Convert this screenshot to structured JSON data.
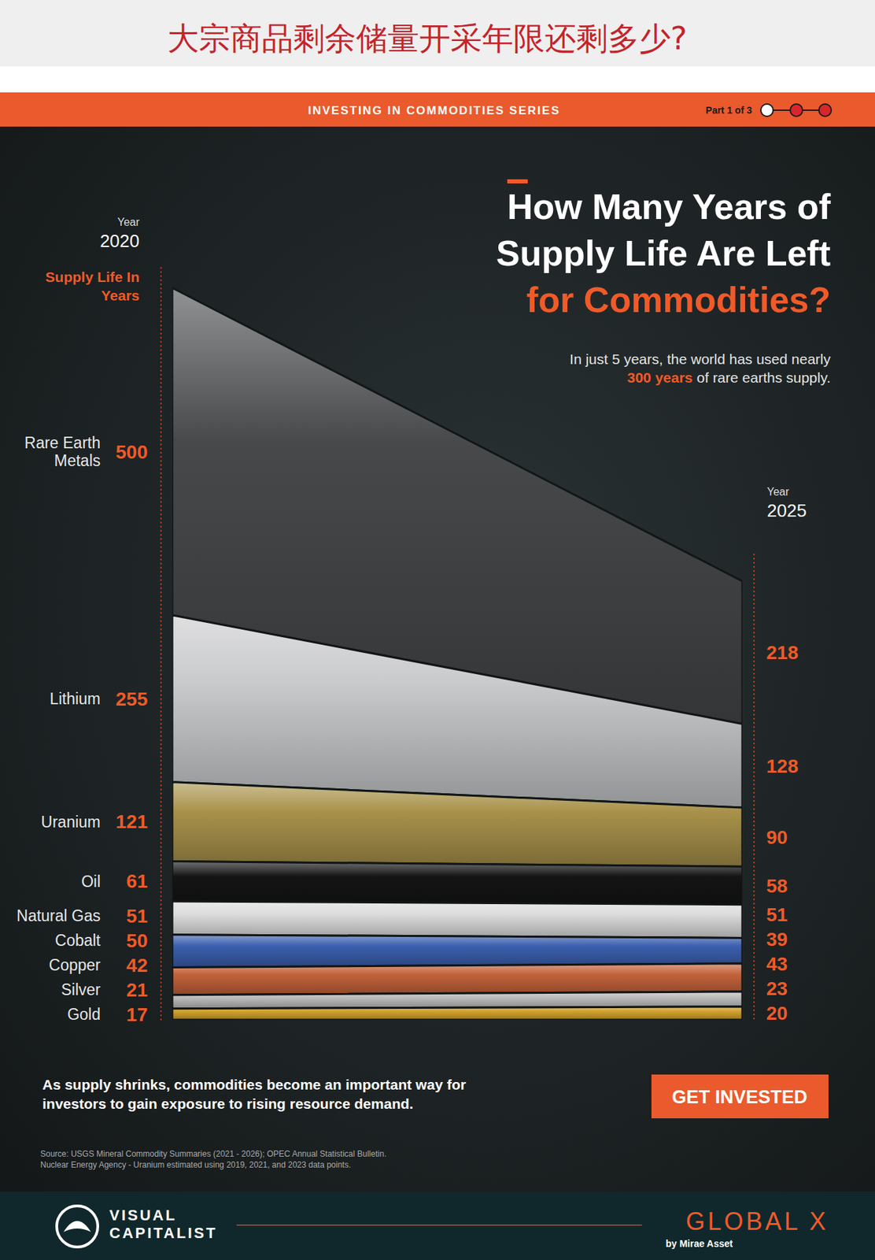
{
  "header": {
    "title": "大宗商品剩余储量开采年限还剩多少?",
    "banner": "INVESTING IN COMMODITIES SERIES",
    "part": "Part 1 of 3"
  },
  "chart_data": {
    "type": "slope",
    "title": [
      {
        "text": "How Many Years of Supply Life Are Left",
        "color": "#ffffff"
      },
      {
        "text": "for Commodities?",
        "color": "#f05a28"
      }
    ],
    "subtitle": [
      {
        "text": "In just 5 years, the world has used nearly",
        "color": "#e4e4e4"
      },
      {
        "text": "300 years",
        "color": "#f05a28"
      },
      {
        "text": "of rare earths supply.",
        "color": "#e4e4e4"
      }
    ],
    "xlabel": "Year",
    "ylabel": "Supply Life In Years",
    "categories": [
      "Rare Earth Metals",
      "Lithium",
      "Uranium",
      "Oil",
      "Natural Gas",
      "Cobalt",
      "Copper",
      "Silver",
      "Gold"
    ],
    "series": [
      {
        "name": "2020",
        "values": [
          500,
          255,
          121,
          61,
          51,
          50,
          42,
          21,
          17
        ]
      },
      {
        "name": "2025",
        "values": [
          218,
          128,
          90,
          58,
          51,
          39,
          43,
          23,
          20
        ]
      }
    ],
    "colors": [
      "#48494b",
      "#c9cacc",
      "#a8924a",
      "#141414",
      "#dcdcdc",
      "#3b5fae",
      "#c3623a",
      "#bcbcbc",
      "#d2a22c"
    ],
    "stacked": true,
    "data_labels": true,
    "tick_labels": false,
    "ylim": [
      0,
      1150
    ]
  },
  "footer": {
    "note": "As supply shrinks, commodities become an important way for investors to gain exposure to rising resource demand.",
    "button": "GET INVESTED",
    "source": [
      "Source: USGS Mineral Commodity Summaries (2021 - 2026); OPEC Annual Statistical Bulletin.",
      "Nuclear Energy Agency - Uranium estimated using 2019, 2021, and 2023 data points."
    ],
    "brand_left": "VISUAL CAPITALIST",
    "brand_right": "GLOBAL X",
    "brand_right_sub": "by Mirae Asset"
  }
}
